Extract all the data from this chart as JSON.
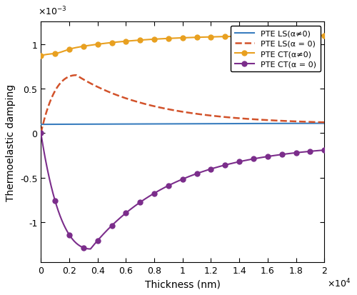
{
  "title": "",
  "xlabel": "Thickness (nm)",
  "ylabel": "Thermoelastic damping",
  "xlim": [
    0,
    20000
  ],
  "ylim": [
    -0.00145,
    0.00125
  ],
  "xticks": [
    0,
    0.2,
    0.4,
    0.6,
    0.8,
    1.0,
    1.2,
    1.4,
    1.6,
    1.8,
    2.0
  ],
  "xtick_scale": 10000.0,
  "ytick_scale": 0.001,
  "yticks": [
    -1.0,
    -0.5,
    0,
    0.5,
    1.0
  ],
  "lines": [
    {
      "label": "PTE LS(α≠0)",
      "color": "#3a7ebf",
      "linestyle": "-",
      "linewidth": 1.5,
      "marker": null,
      "markersize": 6
    },
    {
      "label": "PTE LS(α = 0)",
      "color": "#d2522a",
      "linestyle": "--",
      "linewidth": 1.8,
      "marker": null,
      "markersize": 6
    },
    {
      "label": "PTE CT(α≠0)",
      "color": "#e8a020",
      "linestyle": "-",
      "linewidth": 1.5,
      "marker": "o",
      "markersize": 5
    },
    {
      "label": "PTE CT(α = 0)",
      "color": "#7b2d8b",
      "linestyle": "-",
      "linewidth": 1.5,
      "marker": "o",
      "markersize": 5
    }
  ],
  "background_color": "#ffffff",
  "legend_loc": "upper right",
  "figsize": [
    5.0,
    4.14
  ],
  "dpi": 100
}
